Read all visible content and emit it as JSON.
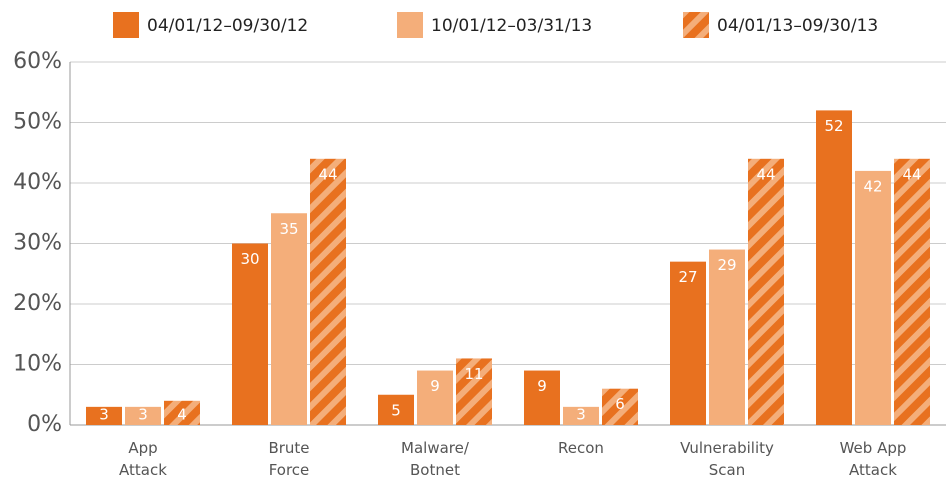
{
  "chart_data": {
    "type": "bar",
    "categories": [
      "App\nAttack",
      "Brute\nForce",
      "Malware/\nBotnet",
      "Recon",
      "Vulnerability\nScan",
      "Web App\nAttack"
    ],
    "series": [
      {
        "name": "04/01/12–09/30/12",
        "color": "#e8711f",
        "values": [
          3,
          30,
          5,
          9,
          27,
          52
        ]
      },
      {
        "name": "10/01/12–03/31/13",
        "color": "#f4ae7a",
        "values": [
          3,
          35,
          9,
          3,
          29,
          42
        ]
      },
      {
        "name": "04/01/13–09/30/13",
        "color": "#e8711f",
        "hatch": "#f4ae7a",
        "values": [
          4,
          44,
          11,
          6,
          44,
          44
        ]
      }
    ],
    "ylim": [
      0,
      60
    ],
    "yticks": [
      {
        "value": 0,
        "label": "0%"
      },
      {
        "value": 10,
        "label": "10%"
      },
      {
        "value": 20,
        "label": "20%"
      },
      {
        "value": 30,
        "label": "30%"
      },
      {
        "value": 40,
        "label": "40%"
      },
      {
        "value": 50,
        "label": "50%"
      },
      {
        "value": 60,
        "label": "60%"
      }
    ],
    "grid": true
  }
}
